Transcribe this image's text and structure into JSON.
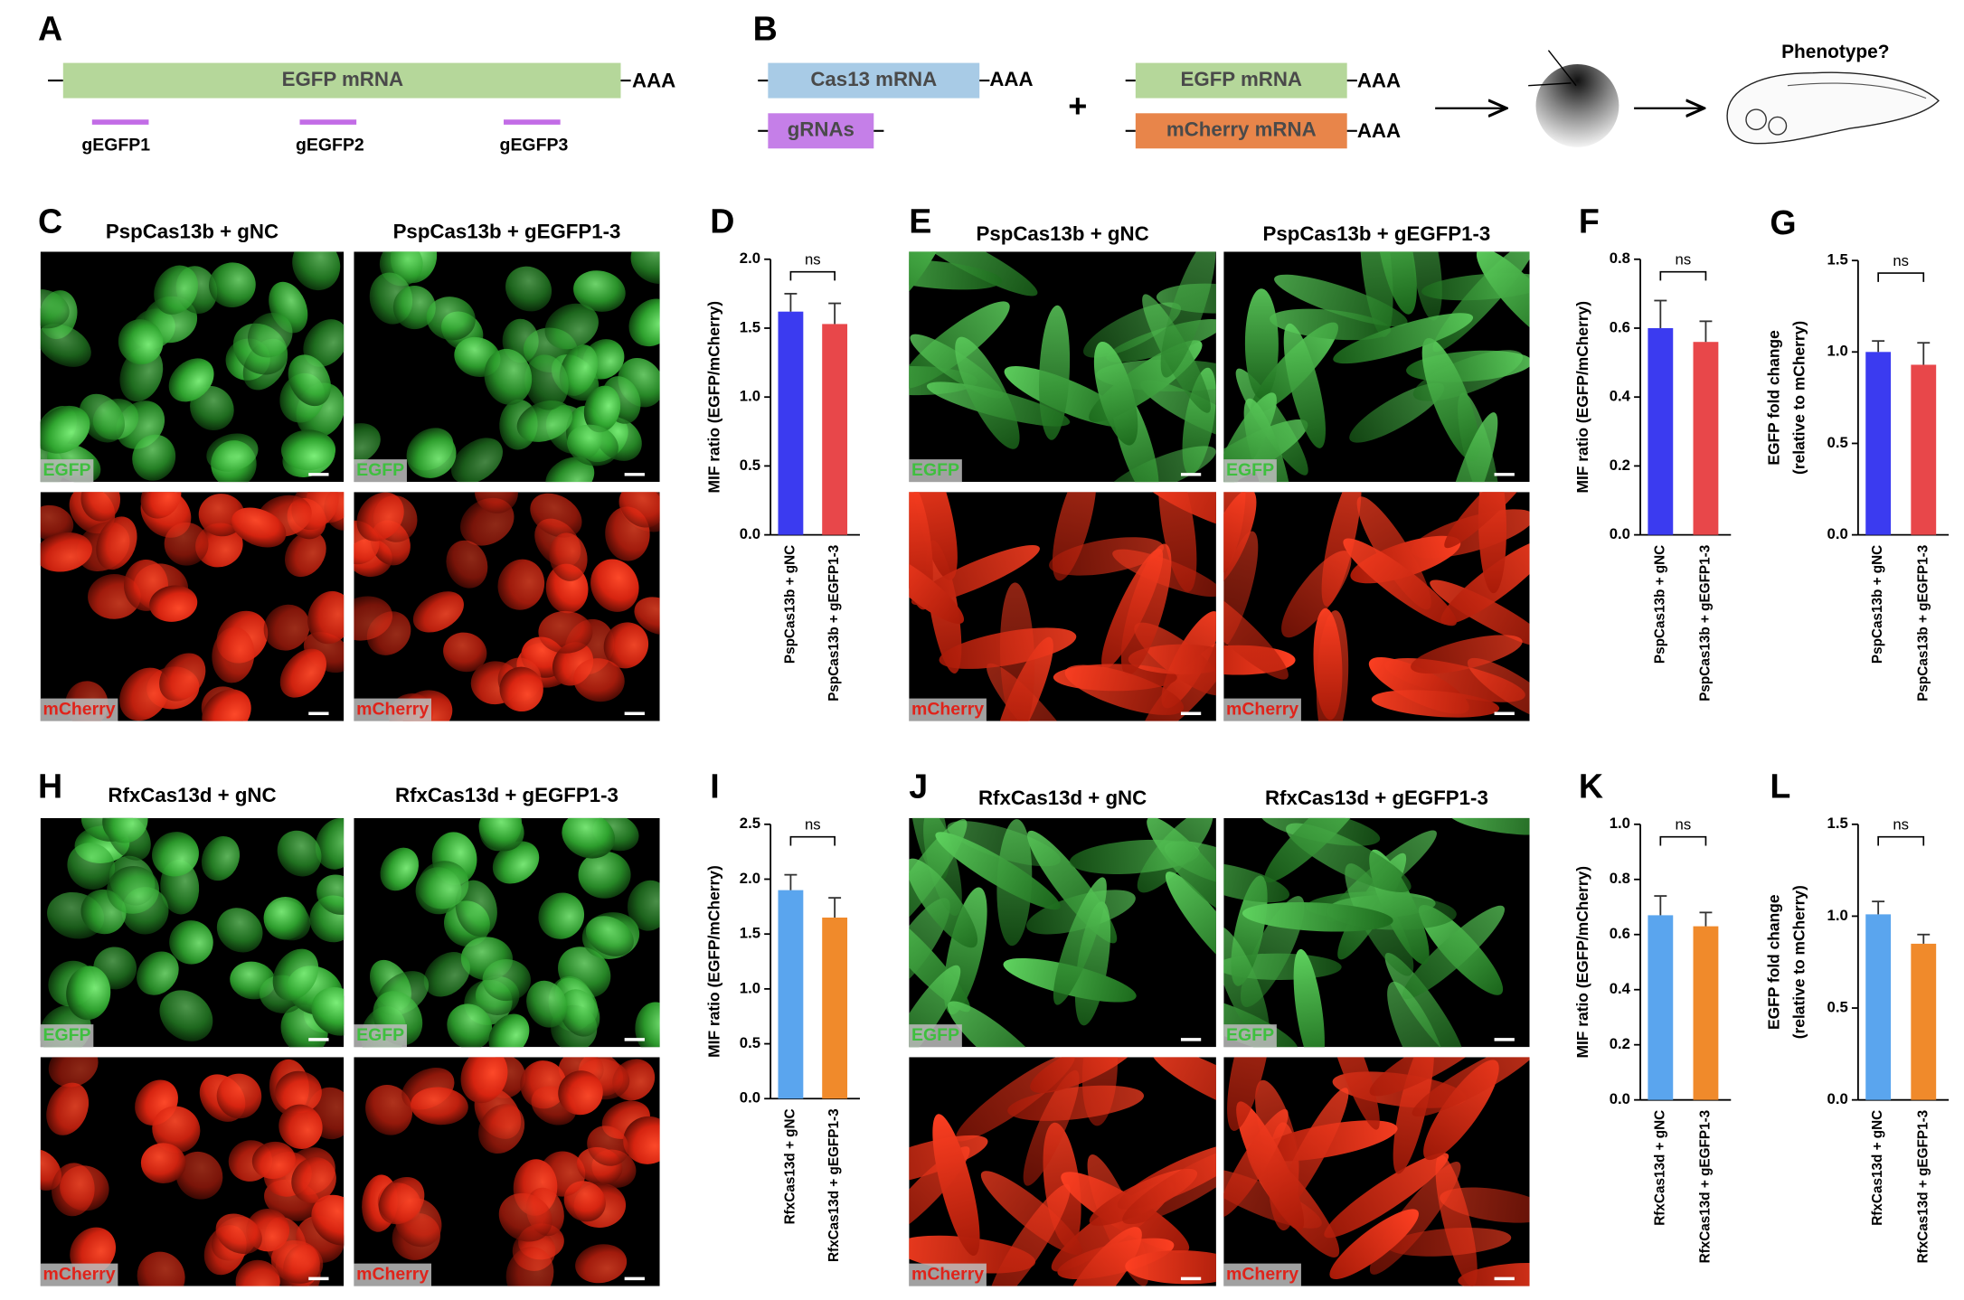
{
  "diagram_a": {
    "panel": "A",
    "mrna": "EGFP mRNA",
    "polya": "AAA",
    "guides": [
      "gEGFP1",
      "gEGFP2",
      "gEGFP3"
    ]
  },
  "diagram_b": {
    "panel": "B",
    "cas13": "Cas13 mRNA",
    "grnas": "gRNAs",
    "plus": "+",
    "egfp": "EGFP mRNA",
    "mcherry": "mCherry mRNA",
    "polya": "AAA",
    "phenotype": "Phenotype?"
  },
  "image_panels": [
    {
      "panel": "C",
      "titles": [
        "PspCas13b + gNC",
        "PspCas13b + gEGFP1-3"
      ],
      "channels": [
        "EGFP",
        "mCherry"
      ]
    },
    {
      "panel": "E",
      "titles": [
        "PspCas13b + gNC",
        "PspCas13b + gEGFP1-3"
      ],
      "channels": [
        "EGFP",
        "mCherry"
      ]
    },
    {
      "panel": "H",
      "titles": [
        "RfxCas13d + gNC",
        "RfxCas13d + gEGFP1-3"
      ],
      "channels": [
        "EGFP",
        "mCherry"
      ]
    },
    {
      "panel": "J",
      "titles": [
        "RfxCas13d + gNC",
        "RfxCas13d + gEGFP1-3"
      ],
      "channels": [
        "EGFP",
        "mCherry"
      ]
    }
  ],
  "chart_data": [
    {
      "type": "bar",
      "panel": "D",
      "ylabel": [
        "MIF ratio (EGFP/mCherry)"
      ],
      "categories": [
        "PspCas13b + gNC",
        "PspCas13b + gEGFP1-3"
      ],
      "values": [
        1.62,
        1.53
      ],
      "errors": [
        0.13,
        0.15
      ],
      "colors": [
        "#3b3bf0",
        "#e8474a"
      ],
      "annotation": "ns",
      "ylim": [
        0,
        2
      ],
      "yticks": [
        {
          "value": 0,
          "label": "0.0"
        },
        0.5,
        {
          "value": 1,
          "label": "1.0"
        },
        1.5,
        {
          "value": 2,
          "label": "2.0"
        }
      ]
    },
    {
      "type": "bar",
      "panel": "F",
      "ylabel": [
        "MIF ratio (EGFP/mCherry)"
      ],
      "categories": [
        "PspCas13b + gNC",
        "PspCas13b + gEGFP1-3"
      ],
      "values": [
        0.6,
        0.56
      ],
      "errors": [
        0.08,
        0.06
      ],
      "colors": [
        "#3b3bf0",
        "#e8474a"
      ],
      "annotation": "ns",
      "ylim": [
        0,
        0.8
      ],
      "yticks": [
        {
          "value": 0,
          "label": "0.0"
        },
        0.2,
        0.4,
        0.6,
        0.8
      ]
    },
    {
      "type": "bar",
      "panel": "G",
      "ylabel": [
        "EGFP fold change",
        "(relative to mCherry)"
      ],
      "categories": [
        "PspCas13b + gNC",
        "PspCas13b + gEGFP1-3"
      ],
      "values": [
        1.0,
        0.93
      ],
      "errors": [
        0.06,
        0.12
      ],
      "colors": [
        "#3b3bf0",
        "#e8474a"
      ],
      "annotation": "ns",
      "ylim": [
        0,
        1.5
      ],
      "yticks": [
        {
          "value": 0,
          "label": "0.0"
        },
        0.5,
        {
          "value": 1,
          "label": "1.0"
        },
        1.5
      ]
    },
    {
      "type": "bar",
      "panel": "I",
      "ylabel": [
        "MIF ratio (EGFP/mCherry)"
      ],
      "categories": [
        "RfxCas13d + gNC",
        "RfxCas13d + gEGFP1-3"
      ],
      "values": [
        1.9,
        1.65
      ],
      "errors": [
        0.14,
        0.18
      ],
      "colors": [
        "#5aa5ee",
        "#f08a2b"
      ],
      "annotation": "ns",
      "ylim": [
        0,
        2.5
      ],
      "yticks": [
        {
          "value": 0,
          "label": "0.0"
        },
        0.5,
        {
          "value": 1,
          "label": "1.0"
        },
        1.5,
        {
          "value": 2,
          "label": "2.0"
        },
        2.5
      ]
    },
    {
      "type": "bar",
      "panel": "K",
      "ylabel": [
        "MIF ratio (EGFP/mCherry)"
      ],
      "categories": [
        "RfxCas13d + gNC",
        "RfxCas13d + gEGFP1-3"
      ],
      "values": [
        0.67,
        0.63
      ],
      "errors": [
        0.07,
        0.05
      ],
      "colors": [
        "#5aa5ee",
        "#f08a2b"
      ],
      "annotation": "ns",
      "ylim": [
        0,
        1
      ],
      "yticks": [
        {
          "value": 0,
          "label": "0.0"
        },
        0.2,
        0.4,
        0.6,
        0.8,
        {
          "value": 1,
          "label": "1.0"
        }
      ]
    },
    {
      "type": "bar",
      "panel": "L",
      "ylabel": [
        "EGFP fold change",
        "(relative to mCherry)"
      ],
      "categories": [
        "RfxCas13d + gNC",
        "RfxCas13d + gEGFP1-3"
      ],
      "values": [
        1.01,
        0.85
      ],
      "errors": [
        0.07,
        0.05
      ],
      "colors": [
        "#5aa5ee",
        "#f08a2b"
      ],
      "annotation": "ns",
      "ylim": [
        0,
        1.5
      ],
      "yticks": [
        {
          "value": 0,
          "label": "0.0"
        },
        0.5,
        {
          "value": 1,
          "label": "1.0"
        },
        1.5
      ]
    }
  ]
}
